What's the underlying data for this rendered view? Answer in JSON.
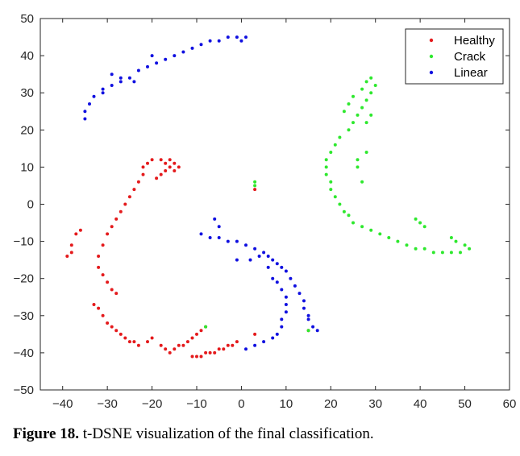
{
  "caption": {
    "label": "Figure 18.",
    "text": "t-DSNE visualization of the final classification."
  },
  "chart_data": {
    "type": "scatter",
    "title": "",
    "xlabel": "",
    "ylabel": "",
    "xlim": [
      -45,
      60
    ],
    "ylim": [
      -50,
      50
    ],
    "xticks": [
      -40,
      -30,
      -20,
      -10,
      0,
      10,
      20,
      30,
      40,
      50,
      60
    ],
    "yticks": [
      -50,
      -40,
      -30,
      -20,
      -10,
      0,
      10,
      20,
      30,
      40,
      50
    ],
    "grid": false,
    "legend": {
      "position": "top-right",
      "entries": [
        "Healthy",
        "Crack",
        "Linear"
      ]
    },
    "series": [
      {
        "name": "Healthy",
        "color": "#e41a1c",
        "points": [
          [
            -17,
            11
          ],
          [
            -16,
            12
          ],
          [
            -15,
            11
          ],
          [
            -14,
            10
          ],
          [
            -15,
            9
          ],
          [
            -16,
            10
          ],
          [
            -17,
            9
          ],
          [
            -18,
            8
          ],
          [
            -19,
            7
          ],
          [
            -18,
            12
          ],
          [
            -20,
            12
          ],
          [
            -21,
            11
          ],
          [
            -22,
            10
          ],
          [
            -22,
            8
          ],
          [
            -23,
            6
          ],
          [
            -24,
            4
          ],
          [
            -25,
            2
          ],
          [
            -26,
            0
          ],
          [
            -27,
            -2
          ],
          [
            -28,
            -4
          ],
          [
            -29,
            -6
          ],
          [
            -30,
            -8
          ],
          [
            -31,
            -11
          ],
          [
            -32,
            -14
          ],
          [
            -32,
            -17
          ],
          [
            -31,
            -19
          ],
          [
            -30,
            -21
          ],
          [
            -29,
            -23
          ],
          [
            -28,
            -24
          ],
          [
            -38,
            -11
          ],
          [
            -38,
            -13
          ],
          [
            -39,
            -14
          ],
          [
            -37,
            -8
          ],
          [
            -36,
            -7
          ],
          [
            -33,
            -27
          ],
          [
            -32,
            -28
          ],
          [
            -31,
            -30
          ],
          [
            -30,
            -32
          ],
          [
            -29,
            -33
          ],
          [
            -28,
            -34
          ],
          [
            -27,
            -35
          ],
          [
            -26,
            -36
          ],
          [
            -25,
            -37
          ],
          [
            -24,
            -37
          ],
          [
            -23,
            -38
          ],
          [
            -21,
            -37
          ],
          [
            -20,
            -36
          ],
          [
            -18,
            -38
          ],
          [
            -17,
            -39
          ],
          [
            -16,
            -40
          ],
          [
            -15,
            -39
          ],
          [
            -14,
            -38
          ],
          [
            -13,
            -38
          ],
          [
            -12,
            -37
          ],
          [
            -11,
            -36
          ],
          [
            -10,
            -35
          ],
          [
            -9,
            -34
          ],
          [
            -8,
            -33
          ],
          [
            -11,
            -41
          ],
          [
            -10,
            -41
          ],
          [
            -9,
            -41
          ],
          [
            -8,
            -40
          ],
          [
            -7,
            -40
          ],
          [
            -6,
            -40
          ],
          [
            -5,
            -39
          ],
          [
            -4,
            -39
          ],
          [
            -3,
            -38
          ],
          [
            -2,
            -38
          ],
          [
            -1,
            -37
          ],
          [
            3,
            4
          ],
          [
            15,
            -34
          ],
          [
            3,
            -35
          ]
        ]
      },
      {
        "name": "Crack",
        "color": "#2ee82e",
        "points": [
          [
            19,
            10
          ],
          [
            19,
            12
          ],
          [
            20,
            14
          ],
          [
            21,
            16
          ],
          [
            22,
            18
          ],
          [
            24,
            20
          ],
          [
            25,
            22
          ],
          [
            26,
            24
          ],
          [
            27,
            26
          ],
          [
            28,
            28
          ],
          [
            29,
            30
          ],
          [
            30,
            32
          ],
          [
            29,
            34
          ],
          [
            28,
            33
          ],
          [
            27,
            31
          ],
          [
            25,
            29
          ],
          [
            24,
            27
          ],
          [
            23,
            25
          ],
          [
            19,
            8
          ],
          [
            20,
            6
          ],
          [
            20,
            4
          ],
          [
            21,
            2
          ],
          [
            22,
            0
          ],
          [
            23,
            -2
          ],
          [
            24,
            -3
          ],
          [
            25,
            -5
          ],
          [
            27,
            -6
          ],
          [
            29,
            -7
          ],
          [
            31,
            -8
          ],
          [
            33,
            -9
          ],
          [
            35,
            -10
          ],
          [
            37,
            -11
          ],
          [
            39,
            -12
          ],
          [
            41,
            -12
          ],
          [
            43,
            -13
          ],
          [
            45,
            -13
          ],
          [
            47,
            -13
          ],
          [
            49,
            -13
          ],
          [
            51,
            -12
          ],
          [
            50,
            -11
          ],
          [
            48,
            -10
          ],
          [
            47,
            -9
          ],
          [
            39,
            -4
          ],
          [
            40,
            -5
          ],
          [
            41,
            -6
          ],
          [
            26,
            10
          ],
          [
            26,
            12
          ],
          [
            27,
            6
          ],
          [
            28,
            14
          ],
          [
            28,
            22
          ],
          [
            29,
            24
          ],
          [
            3,
            5
          ],
          [
            3,
            6
          ],
          [
            -8,
            -33
          ],
          [
            15,
            -34
          ]
        ]
      },
      {
        "name": "Linear",
        "color": "#1010e0",
        "points": [
          [
            -35,
            23
          ],
          [
            -35,
            25
          ],
          [
            -34,
            27
          ],
          [
            -33,
            29
          ],
          [
            -31,
            31
          ],
          [
            -29,
            32
          ],
          [
            -27,
            33
          ],
          [
            -25,
            34
          ],
          [
            -23,
            36
          ],
          [
            -21,
            37
          ],
          [
            -19,
            38
          ],
          [
            -17,
            39
          ],
          [
            -15,
            40
          ],
          [
            -13,
            41
          ],
          [
            -11,
            42
          ],
          [
            -9,
            43
          ],
          [
            -7,
            44
          ],
          [
            -5,
            44
          ],
          [
            -3,
            45
          ],
          [
            -1,
            45
          ],
          [
            1,
            45
          ],
          [
            0,
            44
          ],
          [
            -29,
            35
          ],
          [
            -27,
            34
          ],
          [
            -24,
            33
          ],
          [
            -31,
            30
          ],
          [
            -20,
            40
          ],
          [
            -9,
            -8
          ],
          [
            -7,
            -9
          ],
          [
            -5,
            -9
          ],
          [
            -3,
            -10
          ],
          [
            -1,
            -10
          ],
          [
            1,
            -11
          ],
          [
            3,
            -12
          ],
          [
            5,
            -13
          ],
          [
            6,
            -14
          ],
          [
            7,
            -15
          ],
          [
            8,
            -16
          ],
          [
            9,
            -17
          ],
          [
            10,
            -18
          ],
          [
            11,
            -20
          ],
          [
            12,
            -22
          ],
          [
            13,
            -24
          ],
          [
            14,
            -26
          ],
          [
            14,
            -28
          ],
          [
            15,
            -30
          ],
          [
            15,
            -31
          ],
          [
            16,
            -33
          ],
          [
            17,
            -34
          ],
          [
            -6,
            -4
          ],
          [
            -5,
            -6
          ],
          [
            -1,
            -15
          ],
          [
            2,
            -15
          ],
          [
            4,
            -14
          ],
          [
            6,
            -17
          ],
          [
            7,
            -20
          ],
          [
            8,
            -21
          ],
          [
            9,
            -23
          ],
          [
            10,
            -25
          ],
          [
            10,
            -27
          ],
          [
            10,
            -29
          ],
          [
            9,
            -31
          ],
          [
            9,
            -33
          ],
          [
            8,
            -35
          ],
          [
            7,
            -36
          ],
          [
            5,
            -37
          ],
          [
            3,
            -38
          ],
          [
            1,
            -39
          ]
        ]
      }
    ]
  }
}
